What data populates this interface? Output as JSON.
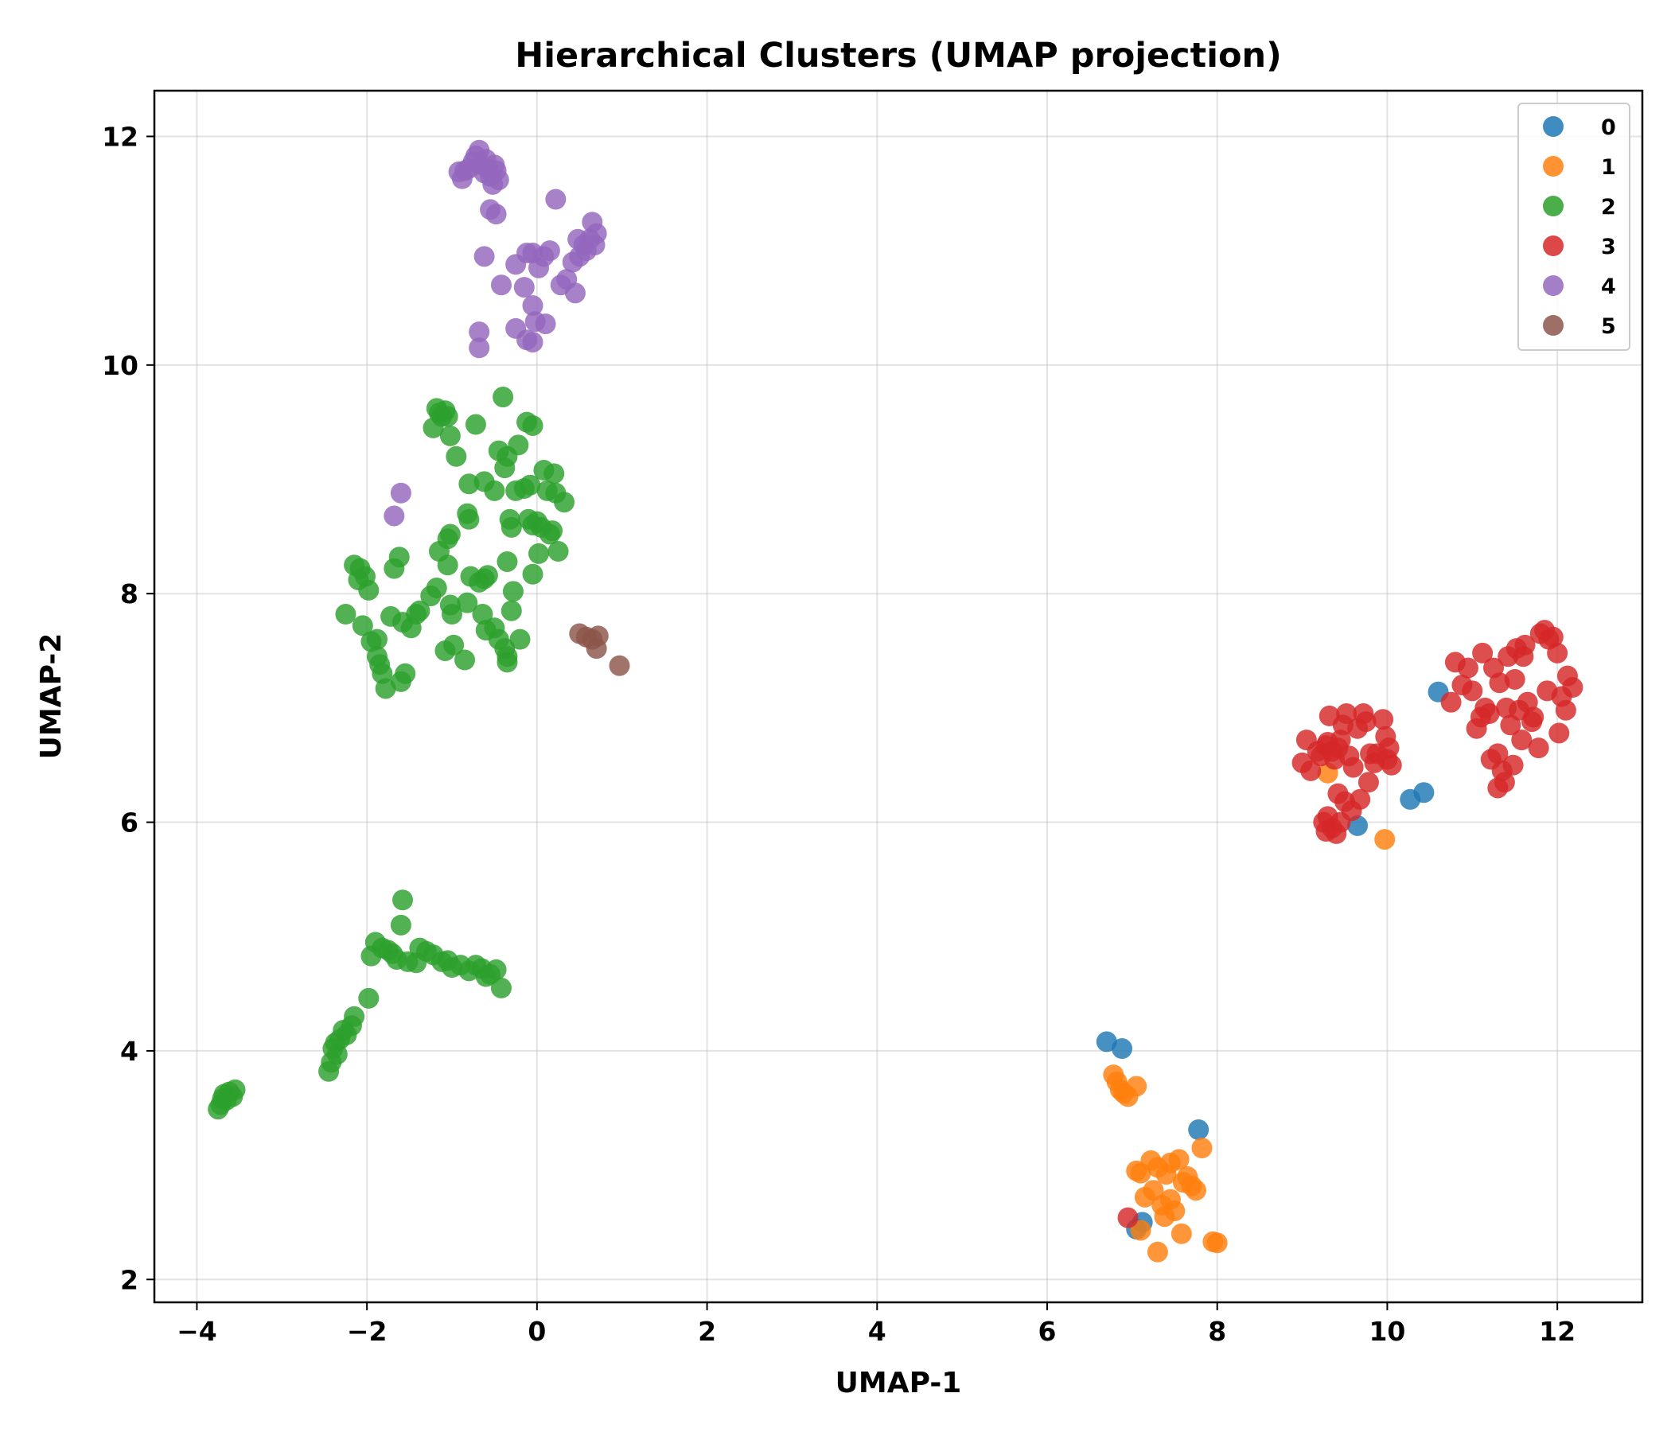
{
  "chart_data": {
    "type": "scatter",
    "title": "Hierarchical Clusters (UMAP projection)",
    "xlabel": "UMAP-1",
    "ylabel": "UMAP-2",
    "xlim": [
      -4.5,
      13.0
    ],
    "ylim": [
      1.8,
      12.4
    ],
    "xticks": [
      -4,
      -2,
      0,
      2,
      4,
      6,
      8,
      10,
      12
    ],
    "yticks": [
      2,
      4,
      6,
      8,
      10,
      12
    ],
    "grid": true,
    "legend_position": "top-right",
    "series": [
      {
        "name": "0",
        "color": "#1f77b4",
        "points": [
          [
            6.7,
            4.08
          ],
          [
            6.88,
            4.02
          ],
          [
            7.78,
            3.31
          ],
          [
            7.05,
            2.44
          ],
          [
            7.12,
            2.5
          ],
          [
            9.65,
            5.97
          ],
          [
            10.27,
            6.2
          ],
          [
            10.43,
            6.26
          ],
          [
            10.6,
            7.14
          ]
        ]
      },
      {
        "name": "1",
        "color": "#ff7f0e",
        "points": [
          [
            6.78,
            3.79
          ],
          [
            6.82,
            3.73
          ],
          [
            6.86,
            3.66
          ],
          [
            6.9,
            3.63
          ],
          [
            6.95,
            3.6
          ],
          [
            7.05,
            3.69
          ],
          [
            7.05,
            2.95
          ],
          [
            7.1,
            2.93
          ],
          [
            7.22,
            3.04
          ],
          [
            7.3,
            2.98
          ],
          [
            7.4,
            2.92
          ],
          [
            7.45,
            3.02
          ],
          [
            7.55,
            3.05
          ],
          [
            7.6,
            2.85
          ],
          [
            7.65,
            2.9
          ],
          [
            7.7,
            2.82
          ],
          [
            7.75,
            2.78
          ],
          [
            7.82,
            3.15
          ],
          [
            7.15,
            2.72
          ],
          [
            7.25,
            2.78
          ],
          [
            7.35,
            2.65
          ],
          [
            7.45,
            2.7
          ],
          [
            7.5,
            2.6
          ],
          [
            7.38,
            2.55
          ],
          [
            7.58,
            2.4
          ],
          [
            7.3,
            2.24
          ],
          [
            7.95,
            2.33
          ],
          [
            8.0,
            2.32
          ],
          [
            7.1,
            2.43
          ],
          [
            9.3,
            6.43
          ],
          [
            9.97,
            5.85
          ]
        ]
      },
      {
        "name": "2",
        "color": "#2ca02c",
        "points": [
          [
            -3.75,
            3.49
          ],
          [
            -3.72,
            3.53
          ],
          [
            -3.7,
            3.58
          ],
          [
            -3.68,
            3.62
          ],
          [
            -3.65,
            3.57
          ],
          [
            -3.62,
            3.64
          ],
          [
            -3.58,
            3.6
          ],
          [
            -3.55,
            3.66
          ],
          [
            -2.45,
            3.82
          ],
          [
            -2.42,
            3.9
          ],
          [
            -2.4,
            4.02
          ],
          [
            -2.37,
            4.07
          ],
          [
            -2.35,
            3.97
          ],
          [
            -2.32,
            4.1
          ],
          [
            -2.28,
            4.18
          ],
          [
            -2.24,
            4.14
          ],
          [
            -2.18,
            4.22
          ],
          [
            -2.15,
            4.3
          ],
          [
            -1.98,
            4.46
          ],
          [
            -1.95,
            4.83
          ],
          [
            -1.9,
            4.95
          ],
          [
            -1.82,
            4.9
          ],
          [
            -1.75,
            4.88
          ],
          [
            -1.7,
            4.85
          ],
          [
            -1.65,
            4.8
          ],
          [
            -1.6,
            5.1
          ],
          [
            -1.58,
            5.32
          ],
          [
            -1.52,
            4.78
          ],
          [
            -1.42,
            4.77
          ],
          [
            -1.38,
            4.9
          ],
          [
            -1.3,
            4.87
          ],
          [
            -1.22,
            4.84
          ],
          [
            -1.12,
            4.78
          ],
          [
            -1.05,
            4.79
          ],
          [
            -1.0,
            4.73
          ],
          [
            -0.9,
            4.75
          ],
          [
            -0.8,
            4.7
          ],
          [
            -0.72,
            4.75
          ],
          [
            -0.65,
            4.72
          ],
          [
            -0.6,
            4.65
          ],
          [
            -0.55,
            4.67
          ],
          [
            -0.48,
            4.71
          ],
          [
            -0.42,
            4.55
          ],
          [
            -2.15,
            8.25
          ],
          [
            -2.08,
            8.22
          ],
          [
            -2.02,
            8.15
          ],
          [
            -2.1,
            8.12
          ],
          [
            -1.98,
            8.03
          ],
          [
            -2.25,
            7.82
          ],
          [
            -2.05,
            7.72
          ],
          [
            -1.95,
            7.58
          ],
          [
            -1.88,
            7.6
          ],
          [
            -1.88,
            7.45
          ],
          [
            -1.85,
            7.38
          ],
          [
            -1.82,
            7.3
          ],
          [
            -1.78,
            7.17
          ],
          [
            -1.72,
            7.8
          ],
          [
            -1.68,
            8.22
          ],
          [
            -1.62,
            8.32
          ],
          [
            -1.58,
            7.75
          ],
          [
            -1.55,
            7.3
          ],
          [
            -1.6,
            7.23
          ],
          [
            -1.48,
            7.7
          ],
          [
            -1.42,
            7.82
          ],
          [
            -1.38,
            7.85
          ],
          [
            -1.25,
            7.98
          ],
          [
            -1.18,
            8.05
          ],
          [
            -1.15,
            8.37
          ],
          [
            -1.05,
            8.48
          ],
          [
            -1.02,
            8.52
          ],
          [
            -1.05,
            8.25
          ],
          [
            -1.02,
            7.9
          ],
          [
            -1.0,
            7.82
          ],
          [
            -1.08,
            7.5
          ],
          [
            -0.98,
            7.55
          ],
          [
            -0.85,
            7.42
          ],
          [
            -0.82,
            7.92
          ],
          [
            -0.82,
            8.7
          ],
          [
            -0.8,
            8.65
          ],
          [
            -0.78,
            8.15
          ],
          [
            -0.68,
            8.1
          ],
          [
            -0.62,
            8.13
          ],
          [
            -0.58,
            8.16
          ],
          [
            -0.64,
            7.82
          ],
          [
            -0.6,
            7.68
          ],
          [
            -0.5,
            7.7
          ],
          [
            -0.45,
            7.6
          ],
          [
            -0.38,
            7.52
          ],
          [
            -0.35,
            7.45
          ],
          [
            -0.35,
            7.4
          ],
          [
            -0.3,
            7.85
          ],
          [
            -0.28,
            8.02
          ],
          [
            -0.2,
            7.6
          ],
          [
            -1.22,
            9.45
          ],
          [
            -1.18,
            9.62
          ],
          [
            -1.15,
            9.58
          ],
          [
            -1.12,
            9.55
          ],
          [
            -1.08,
            9.6
          ],
          [
            -1.05,
            9.55
          ],
          [
            -1.02,
            9.38
          ],
          [
            -0.95,
            9.2
          ],
          [
            -0.8,
            8.96
          ],
          [
            -0.72,
            9.48
          ],
          [
            -0.62,
            8.98
          ],
          [
            -0.5,
            8.9
          ],
          [
            -0.45,
            9.25
          ],
          [
            -0.4,
            9.72
          ],
          [
            -0.38,
            9.1
          ],
          [
            -0.35,
            9.2
          ],
          [
            -0.32,
            8.65
          ],
          [
            -0.3,
            8.58
          ],
          [
            -0.25,
            8.9
          ],
          [
            -0.22,
            9.3
          ],
          [
            -0.15,
            8.92
          ],
          [
            -0.12,
            9.5
          ],
          [
            -0.1,
            8.65
          ],
          [
            -0.08,
            8.95
          ],
          [
            -0.05,
            9.47
          ],
          [
            -0.05,
            8.6
          ],
          [
            0.0,
            8.63
          ],
          [
            0.02,
            8.35
          ],
          [
            0.05,
            8.58
          ],
          [
            0.08,
            9.08
          ],
          [
            0.12,
            8.9
          ],
          [
            0.15,
            8.52
          ],
          [
            0.18,
            8.55
          ],
          [
            0.2,
            9.05
          ],
          [
            0.22,
            8.88
          ],
          [
            0.25,
            8.37
          ],
          [
            0.32,
            8.8
          ],
          [
            -0.35,
            8.28
          ],
          [
            -0.05,
            8.17
          ]
        ]
      },
      {
        "name": "3",
        "color": "#d62728",
        "points": [
          [
            9.0,
            6.52
          ],
          [
            9.05,
            6.72
          ],
          [
            9.1,
            6.45
          ],
          [
            9.18,
            6.62
          ],
          [
            9.22,
            6.58
          ],
          [
            9.28,
            6.67
          ],
          [
            9.32,
            6.93
          ],
          [
            9.3,
            6.7
          ],
          [
            9.35,
            6.62
          ],
          [
            9.38,
            6.55
          ],
          [
            9.42,
            6.65
          ],
          [
            9.45,
            6.72
          ],
          [
            9.48,
            6.85
          ],
          [
            9.52,
            6.95
          ],
          [
            9.55,
            6.58
          ],
          [
            9.6,
            6.48
          ],
          [
            9.65,
            6.82
          ],
          [
            9.72,
            6.95
          ],
          [
            9.75,
            6.88
          ],
          [
            9.78,
            6.35
          ],
          [
            9.8,
            6.6
          ],
          [
            9.85,
            6.52
          ],
          [
            9.88,
            6.6
          ],
          [
            9.95,
            6.9
          ],
          [
            9.98,
            6.75
          ],
          [
            10.0,
            6.55
          ],
          [
            10.02,
            6.65
          ],
          [
            10.05,
            6.5
          ],
          [
            9.42,
            6.25
          ],
          [
            9.5,
            6.18
          ],
          [
            9.58,
            6.1
          ],
          [
            9.68,
            6.2
          ],
          [
            9.25,
            6.0
          ],
          [
            9.28,
            5.92
          ],
          [
            9.3,
            6.05
          ],
          [
            9.35,
            5.95
          ],
          [
            9.4,
            5.9
          ],
          [
            9.45,
            6.0
          ],
          [
            10.75,
            7.05
          ],
          [
            10.8,
            7.4
          ],
          [
            10.88,
            7.2
          ],
          [
            10.95,
            7.35
          ],
          [
            11.0,
            7.15
          ],
          [
            11.05,
            6.82
          ],
          [
            11.1,
            6.92
          ],
          [
            11.12,
            7.48
          ],
          [
            11.15,
            7.0
          ],
          [
            11.2,
            6.95
          ],
          [
            11.22,
            6.55
          ],
          [
            11.25,
            7.35
          ],
          [
            11.3,
            6.6
          ],
          [
            11.32,
            7.22
          ],
          [
            11.35,
            6.45
          ],
          [
            11.3,
            6.3
          ],
          [
            11.38,
            6.35
          ],
          [
            11.4,
            7.0
          ],
          [
            11.42,
            7.45
          ],
          [
            11.45,
            6.85
          ],
          [
            11.48,
            6.5
          ],
          [
            11.5,
            7.25
          ],
          [
            11.52,
            7.52
          ],
          [
            11.55,
            6.98
          ],
          [
            11.58,
            6.72
          ],
          [
            11.6,
            7.45
          ],
          [
            11.62,
            7.55
          ],
          [
            11.65,
            7.05
          ],
          [
            11.7,
            6.88
          ],
          [
            11.72,
            6.92
          ],
          [
            11.78,
            6.65
          ],
          [
            11.8,
            7.65
          ],
          [
            11.85,
            7.68
          ],
          [
            11.88,
            7.15
          ],
          [
            11.9,
            7.6
          ],
          [
            11.95,
            7.62
          ],
          [
            12.0,
            7.48
          ],
          [
            12.02,
            6.78
          ],
          [
            12.05,
            7.1
          ],
          [
            12.1,
            6.98
          ],
          [
            12.12,
            7.28
          ],
          [
            12.18,
            7.18
          ],
          [
            6.95,
            2.54
          ]
        ]
      },
      {
        "name": "4",
        "color": "#9467bd",
        "points": [
          [
            -0.92,
            11.69
          ],
          [
            -0.88,
            11.63
          ],
          [
            -0.85,
            11.7
          ],
          [
            -0.8,
            11.72
          ],
          [
            -0.75,
            11.78
          ],
          [
            -0.72,
            11.83
          ],
          [
            -0.68,
            11.88
          ],
          [
            -0.65,
            11.75
          ],
          [
            -0.62,
            11.68
          ],
          [
            -0.6,
            11.8
          ],
          [
            -0.58,
            11.72
          ],
          [
            -0.55,
            11.65
          ],
          [
            -0.52,
            11.58
          ],
          [
            -0.5,
            11.75
          ],
          [
            -0.48,
            11.7
          ],
          [
            -0.45,
            11.62
          ],
          [
            -0.55,
            11.36
          ],
          [
            -0.48,
            11.32
          ],
          [
            -0.62,
            10.95
          ],
          [
            -0.42,
            10.7
          ],
          [
            -0.25,
            10.88
          ],
          [
            -0.12,
            10.98
          ],
          [
            -0.05,
            10.98
          ],
          [
            0.02,
            10.85
          ],
          [
            0.08,
            10.95
          ],
          [
            0.15,
            11.0
          ],
          [
            0.22,
            11.45
          ],
          [
            -0.15,
            10.68
          ],
          [
            -0.05,
            10.52
          ],
          [
            -0.02,
            10.38
          ],
          [
            0.1,
            10.36
          ],
          [
            -0.68,
            10.29
          ],
          [
            -0.68,
            10.15
          ],
          [
            -0.25,
            10.32
          ],
          [
            -0.12,
            10.22
          ],
          [
            -0.05,
            10.2
          ],
          [
            0.28,
            10.7
          ],
          [
            0.35,
            10.75
          ],
          [
            0.45,
            10.63
          ],
          [
            0.42,
            10.9
          ],
          [
            0.48,
            11.1
          ],
          [
            0.5,
            10.95
          ],
          [
            0.55,
            11.05
          ],
          [
            0.58,
            11.0
          ],
          [
            0.62,
            11.1
          ],
          [
            0.65,
            11.25
          ],
          [
            0.68,
            11.05
          ],
          [
            0.7,
            11.15
          ],
          [
            -1.68,
            8.68
          ],
          [
            -1.6,
            8.88
          ]
        ]
      },
      {
        "name": "5",
        "color": "#8c564b",
        "points": [
          [
            0.5,
            7.65
          ],
          [
            0.58,
            7.62
          ],
          [
            0.65,
            7.6
          ],
          [
            0.7,
            7.52
          ],
          [
            0.72,
            7.63
          ],
          [
            0.97,
            7.37
          ]
        ]
      }
    ]
  }
}
